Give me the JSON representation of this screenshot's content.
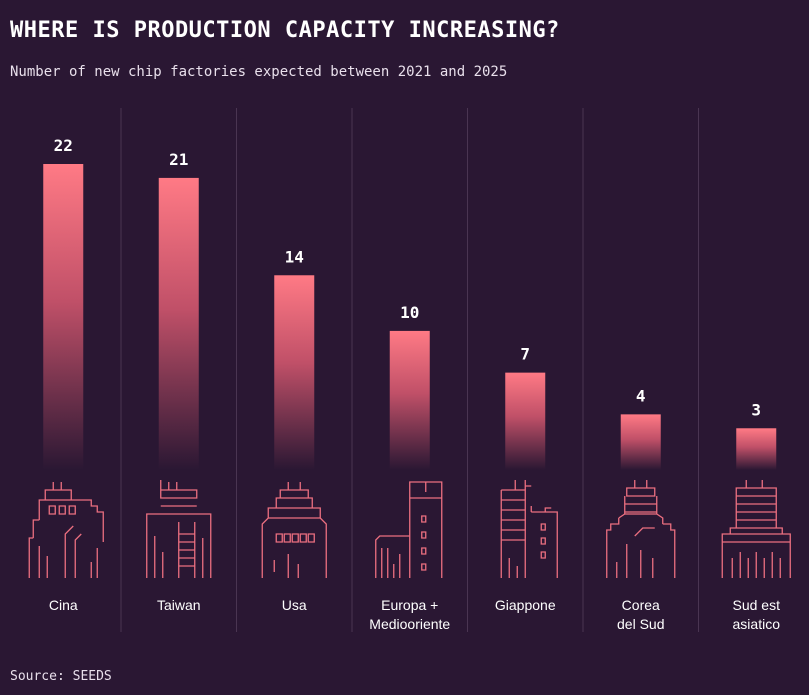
{
  "chart_data": {
    "type": "bar",
    "title": "WHERE IS PRODUCTION CAPACITY INCREASING?",
    "subtitle": "Number of new chip factories expected between 2021 and 2025",
    "categories": [
      [
        "Cina"
      ],
      [
        "Taiwan"
      ],
      [
        "Usa"
      ],
      [
        "Europa +",
        "Mediooriente"
      ],
      [
        "Giappone"
      ],
      [
        "Corea",
        "del Sud"
      ],
      [
        "Sud est",
        "asiatico"
      ]
    ],
    "values": [
      22,
      21,
      14,
      10,
      7,
      4,
      3
    ],
    "ylim": [
      0,
      22
    ],
    "xlabel": "",
    "ylabel": "",
    "grid": false,
    "source": "Source: SEEDS"
  },
  "colors": {
    "background": "#2a1733",
    "bar_top": "#ff7a85",
    "bar_bottom": "#2a1733",
    "icon_stroke": "#ec6f80",
    "divider": "#4a3552"
  }
}
